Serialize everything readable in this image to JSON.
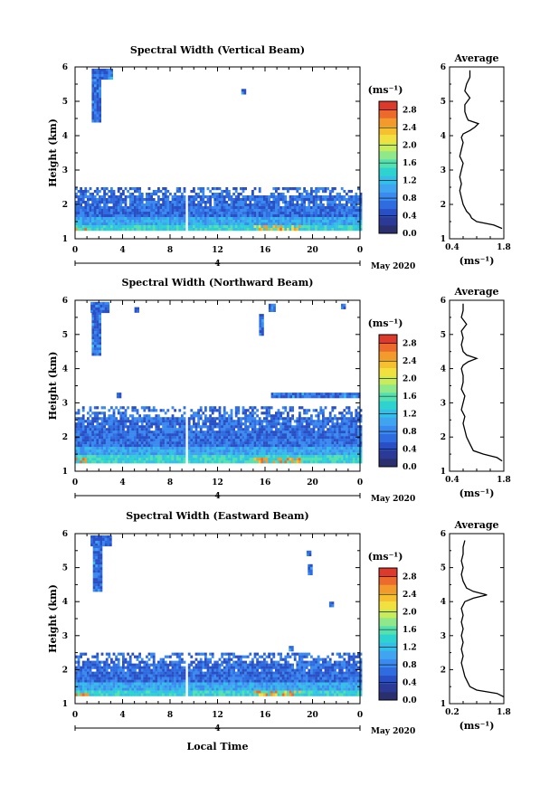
{
  "chart_data": [
    {
      "type": "heatmap",
      "title": "Spectral Width (Vertical Beam)",
      "ylabel": "Height (km)",
      "ylim": [
        1,
        6
      ],
      "yticks": [
        "1",
        "2",
        "3",
        "4",
        "5",
        "6"
      ],
      "xlim": [
        0,
        24
      ],
      "xticks": [
        "0",
        "4",
        "8",
        "12",
        "16",
        "20",
        "0"
      ],
      "date_day": "4",
      "date_label": "May 2020",
      "xlabel": "",
      "colorbar": {
        "unit": "(ms⁻¹)",
        "ticks": [
          "0.0",
          "0.4",
          "0.8",
          "1.2",
          "1.6",
          "2.0",
          "2.4",
          "2.8"
        ],
        "range": [
          0,
          3.0
        ]
      },
      "data_gap_hours": [
        9.2,
        9.4
      ],
      "echo_regions": [
        {
          "x": [
            1.4,
            3.1
          ],
          "y": [
            5.65,
            5.95
          ],
          "level": 0.5
        },
        {
          "x": [
            1.4,
            2.1
          ],
          "y": [
            4.4,
            5.65
          ],
          "level": 0.45
        },
        {
          "x": [
            14.0,
            14.2
          ],
          "y": [
            5.28,
            5.36
          ],
          "level": 0.3
        },
        {
          "x": [
            0,
            24
          ],
          "y": [
            1.3,
            2.5
          ],
          "level": 0.55
        }
      ],
      "average": {
        "title": "Average",
        "xlabel": "(ms⁻¹)",
        "xticks": [
          "0.4",
          "1.8"
        ],
        "xlim": [
          0.2,
          1.8
        ],
        "height_km": [
          1.3,
          1.4,
          1.5,
          1.6,
          1.7,
          1.8,
          2.0,
          2.2,
          2.4,
          2.6,
          2.8,
          3.0,
          3.2,
          3.4,
          3.6,
          3.8,
          3.95,
          4.05,
          4.15,
          4.25,
          4.35,
          4.45,
          4.55,
          4.7,
          4.9,
          5.1,
          5.3,
          5.5,
          5.7,
          5.9
        ],
        "value": [
          1.75,
          1.5,
          1.0,
          0.85,
          0.8,
          0.7,
          0.6,
          0.55,
          0.5,
          0.55,
          0.5,
          0.55,
          0.6,
          0.5,
          0.55,
          0.6,
          0.55,
          0.6,
          0.8,
          0.95,
          1.05,
          0.75,
          0.7,
          0.65,
          0.65,
          0.8,
          0.65,
          0.7,
          0.8,
          0.8
        ]
      }
    },
    {
      "type": "heatmap",
      "title": "Spectral Width (Northward Beam)",
      "ylabel": "Height (km)",
      "ylim": [
        1,
        6
      ],
      "yticks": [
        "1",
        "2",
        "3",
        "4",
        "5",
        "6"
      ],
      "xlim": [
        0,
        24
      ],
      "xticks": [
        "0",
        "4",
        "8",
        "12",
        "16",
        "20",
        "0"
      ],
      "date_day": "4",
      "date_label": "May 2020",
      "xlabel": "",
      "colorbar": {
        "unit": "(ms⁻¹)",
        "ticks": [
          "0.0",
          "0.4",
          "0.8",
          "1.2",
          "1.6",
          "2.0",
          "2.4",
          "2.8"
        ],
        "range": [
          0,
          3.0
        ]
      },
      "data_gap_hours": [
        9.2,
        9.4
      ],
      "echo_regions": [
        {
          "x": [
            1.3,
            2.7
          ],
          "y": [
            5.65,
            5.95
          ],
          "level": 0.5
        },
        {
          "x": [
            1.4,
            2.0
          ],
          "y": [
            4.4,
            5.65
          ],
          "level": 0.45
        },
        {
          "x": [
            5.0,
            5.2
          ],
          "y": [
            5.7,
            5.8
          ],
          "level": 0.3
        },
        {
          "x": [
            16.3,
            16.8
          ],
          "y": [
            5.7,
            5.9
          ],
          "level": 0.3
        },
        {
          "x": [
            15.5,
            15.8
          ],
          "y": [
            5.0,
            5.6
          ],
          "level": 0.3
        },
        {
          "x": [
            22.4,
            22.7
          ],
          "y": [
            5.8,
            5.9
          ],
          "level": 0.3
        },
        {
          "x": [
            16.5,
            24
          ],
          "y": [
            3.15,
            3.3
          ],
          "level": 0.35
        },
        {
          "x": [
            3.5,
            3.7
          ],
          "y": [
            3.2,
            3.3
          ],
          "level": 0.35
        },
        {
          "x": [
            0,
            24
          ],
          "y": [
            1.3,
            2.9
          ],
          "level": 0.55
        }
      ],
      "average": {
        "title": "Average",
        "xlabel": "(ms⁻¹)",
        "xticks": [
          "0.4",
          "1.8"
        ],
        "xlim": [
          0.2,
          1.8
        ],
        "height_km": [
          1.3,
          1.4,
          1.5,
          1.6,
          1.8,
          2.0,
          2.2,
          2.4,
          2.6,
          2.8,
          3.0,
          3.2,
          3.4,
          3.6,
          3.8,
          4.0,
          4.1,
          4.2,
          4.3,
          4.4,
          4.5,
          4.7,
          4.9,
          5.1,
          5.3,
          5.5,
          5.7,
          5.9
        ],
        "value": [
          1.75,
          1.6,
          1.2,
          0.9,
          0.8,
          0.7,
          0.65,
          0.6,
          0.65,
          0.55,
          0.6,
          0.65,
          0.55,
          0.6,
          0.6,
          0.55,
          0.6,
          0.75,
          1.0,
          0.7,
          0.6,
          0.55,
          0.6,
          0.55,
          0.7,
          0.55,
          0.6,
          0.6
        ]
      }
    },
    {
      "type": "heatmap",
      "title": "Spectral Width (Eastward Beam)",
      "ylabel": "Height (km)",
      "ylim": [
        1,
        6
      ],
      "yticks": [
        "1",
        "2",
        "3",
        "4",
        "5",
        "6"
      ],
      "xlim": [
        0,
        24
      ],
      "xticks": [
        "0",
        "4",
        "8",
        "12",
        "16",
        "20",
        "0"
      ],
      "date_day": "4",
      "date_label": "May 2020",
      "xlabel": "Local Time",
      "colorbar": {
        "unit": "(ms⁻¹)",
        "ticks": [
          "0.0",
          "0.4",
          "0.8",
          "1.2",
          "1.6",
          "2.0",
          "2.4",
          "2.8"
        ],
        "range": [
          0,
          3.0
        ]
      },
      "data_gap_hours": [
        9.2,
        9.4
      ],
      "echo_regions": [
        {
          "x": [
            1.3,
            2.9
          ],
          "y": [
            5.65,
            5.95
          ],
          "level": 0.5
        },
        {
          "x": [
            1.5,
            2.1
          ],
          "y": [
            4.3,
            5.65
          ],
          "level": 0.45
        },
        {
          "x": [
            19.5,
            19.7
          ],
          "y": [
            5.4,
            5.5
          ],
          "level": 0.3
        },
        {
          "x": [
            19.6,
            19.8
          ],
          "y": [
            4.8,
            5.1
          ],
          "level": 0.3
        },
        {
          "x": [
            21.4,
            21.6
          ],
          "y": [
            3.9,
            4.0
          ],
          "level": 0.3
        },
        {
          "x": [
            18.0,
            18.2
          ],
          "y": [
            2.6,
            2.7
          ],
          "level": 0.3
        },
        {
          "x": [
            0,
            24
          ],
          "y": [
            1.3,
            2.5
          ],
          "level": 0.55
        }
      ],
      "average": {
        "title": "Average",
        "xlabel": "(ms⁻¹)",
        "xticks": [
          "0.2",
          "1.8"
        ],
        "xlim": [
          0.2,
          1.8
        ],
        "height_km": [
          1.2,
          1.3,
          1.4,
          1.5,
          1.6,
          1.8,
          2.0,
          2.2,
          2.4,
          2.6,
          2.8,
          3.0,
          3.2,
          3.4,
          3.6,
          3.8,
          4.0,
          4.1,
          4.2,
          4.3,
          4.4,
          4.6,
          4.8,
          5.0,
          5.2,
          5.4,
          5.6,
          5.8
        ],
        "value": [
          1.8,
          1.6,
          1.0,
          0.8,
          0.75,
          0.65,
          0.6,
          0.55,
          0.6,
          0.55,
          0.6,
          0.55,
          0.6,
          0.55,
          0.6,
          0.55,
          0.65,
          0.9,
          1.3,
          0.9,
          0.7,
          0.6,
          0.55,
          0.6,
          0.55,
          0.6,
          0.6,
          0.65
        ]
      }
    }
  ]
}
